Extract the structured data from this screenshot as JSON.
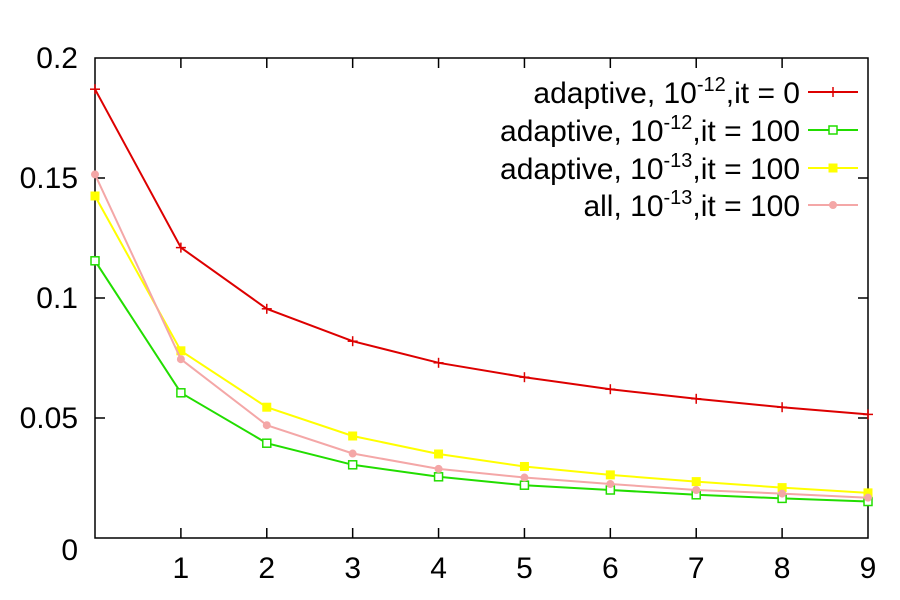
{
  "chart_data": {
    "type": "line",
    "title": "",
    "xlabel": "",
    "ylabel": "",
    "x": [
      0,
      1,
      2,
      3,
      4,
      5,
      6,
      7,
      8,
      9
    ],
    "xlim": [
      0,
      9
    ],
    "ylim": [
      0,
      0.2
    ],
    "xticks": [
      1,
      2,
      3,
      4,
      5,
      6,
      7,
      8,
      9
    ],
    "yticks": [
      0,
      0.05,
      0.1,
      0.15,
      0.2
    ],
    "x_tick_labels": [
      "1",
      "2",
      "3",
      "4",
      "5",
      "6",
      "7",
      "8",
      "9"
    ],
    "y_tick_labels": [
      "0",
      "0.05",
      "0.1",
      "0.15",
      "0.2"
    ],
    "grid": false,
    "legend_position": "top-right",
    "series": [
      {
        "legend": {
          "pre": "adaptive, 10",
          "sup": "-12",
          "post": ",it = 0"
        },
        "color": "#dd0000",
        "marker": "plus",
        "values": [
          0.187,
          0.121,
          0.0955,
          0.082,
          0.073,
          0.067,
          0.062,
          0.058,
          0.0545,
          0.0515
        ]
      },
      {
        "legend": {
          "pre": "adaptive, 10",
          "sup": "-12",
          "post": ",it = 100"
        },
        "color": "#22dd00",
        "marker": "square-open",
        "values": [
          0.1155,
          0.0605,
          0.0395,
          0.0305,
          0.0255,
          0.022,
          0.02,
          0.018,
          0.0165,
          0.0152
        ]
      },
      {
        "legend": {
          "pre": "adaptive, 10",
          "sup": "-13",
          "post": ",it = 100"
        },
        "color": "#ffff00",
        "marker": "square-filled",
        "values": [
          0.1425,
          0.078,
          0.0545,
          0.0425,
          0.035,
          0.0298,
          0.0263,
          0.0235,
          0.021,
          0.0188
        ]
      },
      {
        "legend": {
          "pre": "all, 10",
          "sup": "-13",
          "post": ",it = 100"
        },
        "color": "#f4a7a7",
        "marker": "circle-filled",
        "values": [
          0.1515,
          0.0745,
          0.047,
          0.0352,
          0.0288,
          0.0252,
          0.0225,
          0.02,
          0.0185,
          0.0168
        ]
      }
    ]
  }
}
